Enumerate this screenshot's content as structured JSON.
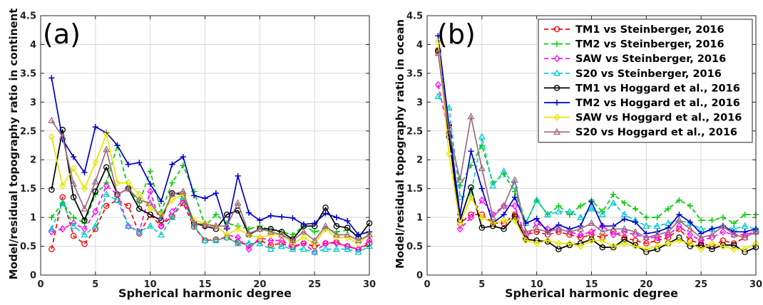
{
  "figure": {
    "panel_labels": [
      "(a)",
      "(b)"
    ]
  },
  "chart_data": [
    {
      "type": "line",
      "panel": "(a)",
      "title": "",
      "xlabel": "Spherical harmonic degree",
      "ylabel": "Model/residual topography ratio in continent",
      "xlim": [
        0,
        30
      ],
      "ylim": [
        0,
        4.5
      ],
      "xticks": [
        0,
        5,
        10,
        15,
        20,
        25,
        30
      ],
      "yticks": [
        0,
        0.5,
        1,
        1.5,
        2,
        2.5,
        3,
        3.5,
        4,
        4.5
      ],
      "grid": true,
      "x": [
        1,
        2,
        3,
        4,
        5,
        6,
        7,
        8,
        9,
        10,
        11,
        12,
        13,
        14,
        15,
        16,
        17,
        18,
        19,
        20,
        21,
        22,
        23,
        24,
        25,
        26,
        27,
        28,
        29,
        30
      ],
      "series": [
        {
          "name": "TM1 vs Steinberger, 2016",
          "color": "#ff0000",
          "dashed": true,
          "marker": "circle",
          "values": [
            0.45,
            1.35,
            0.68,
            0.54,
            0.8,
            1.2,
            1.3,
            1.2,
            0.72,
            1.05,
            0.85,
            1.02,
            1.25,
            0.84,
            0.6,
            0.62,
            0.65,
            0.57,
            0.52,
            0.6,
            0.52,
            0.55,
            0.48,
            0.55,
            0.5,
            0.55,
            0.57,
            0.5,
            0.44,
            0.55
          ]
        },
        {
          "name": "TM2 vs Steinberger, 2016",
          "color": "#00cc00",
          "dashed": true,
          "marker": "plus",
          "values": [
            1.0,
            1.25,
            1.0,
            0.9,
            1.4,
            1.6,
            2.25,
            1.5,
            1.25,
            1.8,
            1.1,
            1.6,
            1.9,
            1.45,
            0.85,
            1.05,
            0.9,
            0.85,
            0.8,
            0.85,
            0.78,
            0.75,
            0.7,
            0.85,
            0.75,
            0.8,
            0.75,
            0.78,
            0.7,
            0.75
          ]
        },
        {
          "name": "SAW vs Steinberger, 2016",
          "color": "#ff00ff",
          "dashed": true,
          "marker": "diamond",
          "values": [
            0.75,
            0.8,
            0.9,
            0.8,
            1.1,
            1.55,
            1.4,
            0.85,
            0.75,
            1.45,
            0.85,
            1.1,
            1.3,
            0.9,
            0.85,
            0.85,
            0.7,
            0.65,
            0.45,
            0.65,
            0.6,
            0.6,
            0.5,
            0.55,
            0.4,
            0.55,
            0.55,
            0.5,
            0.45,
            0.6
          ]
        },
        {
          "name": "S20  vs Steinberger, 2016",
          "color": "#00cccc",
          "dashed": true,
          "marker": "triangle",
          "values": [
            0.8,
            1.25,
            0.85,
            0.7,
            0.85,
            1.4,
            1.3,
            0.85,
            0.75,
            0.85,
            0.7,
            1.0,
            1.35,
            0.85,
            0.6,
            0.6,
            0.65,
            0.55,
            0.55,
            0.55,
            0.45,
            0.5,
            0.45,
            0.45,
            0.4,
            0.45,
            0.45,
            0.45,
            0.4,
            0.5
          ]
        },
        {
          "name": "TM1 vs Hoggard et al., 2016",
          "color": "#000000",
          "dashed": false,
          "marker": "circle",
          "values": [
            1.48,
            2.52,
            1.35,
            0.95,
            1.45,
            1.87,
            1.4,
            1.5,
            1.15,
            1.05,
            0.95,
            1.42,
            1.4,
            0.9,
            0.85,
            0.8,
            1.05,
            1.12,
            0.7,
            0.8,
            0.8,
            0.75,
            0.62,
            0.85,
            0.85,
            1.17,
            0.85,
            0.82,
            0.65,
            0.9
          ]
        },
        {
          "name": "TM2 vs Hoggard et al., 2016",
          "color": "#0000cc",
          "dashed": false,
          "marker": "plus",
          "values": [
            3.42,
            2.35,
            2.05,
            1.78,
            2.57,
            2.47,
            2.25,
            1.92,
            1.95,
            1.58,
            1.28,
            1.92,
            2.05,
            1.38,
            1.33,
            1.42,
            0.8,
            1.72,
            1.08,
            0.95,
            1.03,
            1.01,
            0.99,
            0.88,
            0.9,
            1.07,
            1.0,
            0.94,
            0.7,
            0.75
          ]
        },
        {
          "name": "SAW vs Hoggard et al., 2016",
          "color": "#e6e600",
          "dashed": false,
          "marker": "diamond",
          "values": [
            2.4,
            1.55,
            1.85,
            1.5,
            1.95,
            2.45,
            1.6,
            1.6,
            1.4,
            1.15,
            1.05,
            1.3,
            1.4,
            0.95,
            0.9,
            0.85,
            0.7,
            0.8,
            0.7,
            0.65,
            0.7,
            0.7,
            0.55,
            0.65,
            0.55,
            0.8,
            0.65,
            0.65,
            0.55,
            0.7
          ]
        },
        {
          "name": "S20  vs Hoggard et al., 2016",
          "color": "#9e6b80",
          "dashed": false,
          "marker": "triangle",
          "values": [
            2.68,
            2.4,
            1.58,
            1.15,
            1.62,
            2.18,
            1.4,
            1.5,
            1.3,
            1.25,
            1.0,
            1.4,
            1.45,
            0.9,
            0.88,
            0.85,
            0.85,
            1.25,
            0.72,
            0.8,
            0.75,
            0.7,
            0.6,
            0.75,
            0.6,
            0.85,
            0.7,
            0.7,
            0.6,
            0.7
          ]
        }
      ]
    },
    {
      "type": "line",
      "panel": "(b)",
      "title": "",
      "xlabel": "Spherical harmonic degree",
      "ylabel": "Model/residual topography ratio in ocean",
      "xlim": [
        0,
        30
      ],
      "ylim": [
        0,
        4.5
      ],
      "xticks": [
        0,
        5,
        10,
        15,
        20,
        25,
        30
      ],
      "yticks": [
        0,
        0.5,
        1,
        1.5,
        2,
        2.5,
        3,
        3.5,
        4,
        4.5
      ],
      "grid": true,
      "legend_position": "top-right",
      "x": [
        1,
        2,
        3,
        4,
        5,
        6,
        7,
        8,
        9,
        10,
        11,
        12,
        13,
        14,
        15,
        16,
        17,
        18,
        19,
        20,
        21,
        22,
        23,
        24,
        25,
        26,
        27,
        28,
        29,
        30
      ],
      "series": [
        {
          "name": "TM1 vs Steinberger, 2016",
          "color": "#ff0000",
          "dashed": true,
          "marker": "circle",
          "values": [
            3.9,
            2.6,
            0.9,
            1.05,
            1.05,
            0.9,
            0.9,
            1.05,
            0.7,
            0.75,
            0.7,
            0.75,
            0.7,
            0.65,
            0.7,
            0.65,
            0.75,
            0.65,
            0.6,
            0.55,
            0.6,
            0.65,
            0.8,
            0.6,
            0.55,
            0.5,
            0.6,
            0.55,
            0.65,
            0.75
          ]
        },
        {
          "name": "TM2 vs Steinberger, 2016",
          "color": "#00cc00",
          "dashed": true,
          "marker": "plus",
          "values": [
            3.9,
            2.55,
            1.55,
            1.9,
            2.25,
            1.6,
            1.75,
            1.45,
            0.9,
            1.3,
            1.05,
            1.2,
            1.05,
            1.2,
            1.3,
            1.1,
            1.4,
            1.25,
            1.15,
            1.0,
            1.0,
            1.15,
            1.3,
            1.2,
            0.95,
            0.95,
            1.0,
            0.9,
            1.05,
            1.05
          ]
        },
        {
          "name": "SAW vs Steinberger, 2016",
          "color": "#ff00ff",
          "dashed": true,
          "marker": "diamond",
          "values": [
            3.3,
            2.45,
            0.8,
            1.0,
            1.3,
            1.05,
            1.2,
            1.2,
            0.65,
            0.9,
            0.8,
            0.8,
            0.75,
            0.7,
            0.75,
            0.85,
            0.7,
            0.75,
            0.7,
            0.65,
            0.65,
            0.7,
            0.85,
            0.7,
            0.6,
            0.65,
            0.75,
            0.7,
            0.7,
            0.75
          ]
        },
        {
          "name": "S20  vs Steinberger, 2016",
          "color": "#00cccc",
          "dashed": true,
          "marker": "triangle",
          "values": [
            3.1,
            2.9,
            1.35,
            1.4,
            2.4,
            1.55,
            1.8,
            1.55,
            0.9,
            1.3,
            1.05,
            1.1,
            1.1,
            1.0,
            1.15,
            1.05,
            1.25,
            1.05,
            0.95,
            0.85,
            0.85,
            0.9,
            0.95,
            0.9,
            0.8,
            0.8,
            0.85,
            0.8,
            0.85,
            0.8
          ]
        },
        {
          "name": "TM1 vs Hoggard et al., 2016",
          "color": "#000000",
          "dashed": false,
          "marker": "circle",
          "values": [
            3.88,
            2.4,
            0.95,
            1.52,
            0.82,
            0.85,
            0.8,
            1.02,
            0.62,
            0.6,
            0.58,
            0.45,
            0.52,
            0.55,
            0.62,
            0.48,
            0.48,
            0.62,
            0.52,
            0.4,
            0.45,
            0.55,
            0.65,
            0.5,
            0.52,
            0.45,
            0.52,
            0.52,
            0.4,
            0.48
          ]
        },
        {
          "name": "TM2 vs Hoggard et al., 2016",
          "color": "#0000cc",
          "dashed": false,
          "marker": "plus",
          "values": [
            4.15,
            2.6,
            1.05,
            2.15,
            1.5,
            0.9,
            1.05,
            1.35,
            0.9,
            0.98,
            0.75,
            0.87,
            0.8,
            0.85,
            1.27,
            0.85,
            0.85,
            0.97,
            0.92,
            0.72,
            0.75,
            0.82,
            1.05,
            0.92,
            0.72,
            0.8,
            0.85,
            0.75,
            0.75,
            0.8
          ]
        },
        {
          "name": "SAW vs Hoggard et al., 2016",
          "color": "#e6e600",
          "dashed": false,
          "marker": "diamond",
          "values": [
            4.05,
            2.1,
            0.9,
            1.35,
            1.0,
            0.9,
            0.95,
            0.95,
            0.6,
            0.55,
            0.6,
            0.55,
            0.55,
            0.5,
            0.6,
            0.6,
            0.5,
            0.55,
            0.5,
            0.45,
            0.5,
            0.55,
            0.6,
            0.55,
            0.45,
            0.55,
            0.5,
            0.45,
            0.45,
            0.55
          ]
        },
        {
          "name": "S20  vs Hoggard et al., 2016",
          "color": "#9e6b80",
          "dashed": false,
          "marker": "triangle",
          "values": [
            3.85,
            2.5,
            1.65,
            2.75,
            1.85,
            1.0,
            1.2,
            1.65,
            0.75,
            0.8,
            0.75,
            0.8,
            0.75,
            0.8,
            0.9,
            0.75,
            0.8,
            0.8,
            0.75,
            0.65,
            0.7,
            0.75,
            0.95,
            0.8,
            0.65,
            0.7,
            0.85,
            0.7,
            0.65,
            0.75
          ]
        }
      ]
    }
  ]
}
